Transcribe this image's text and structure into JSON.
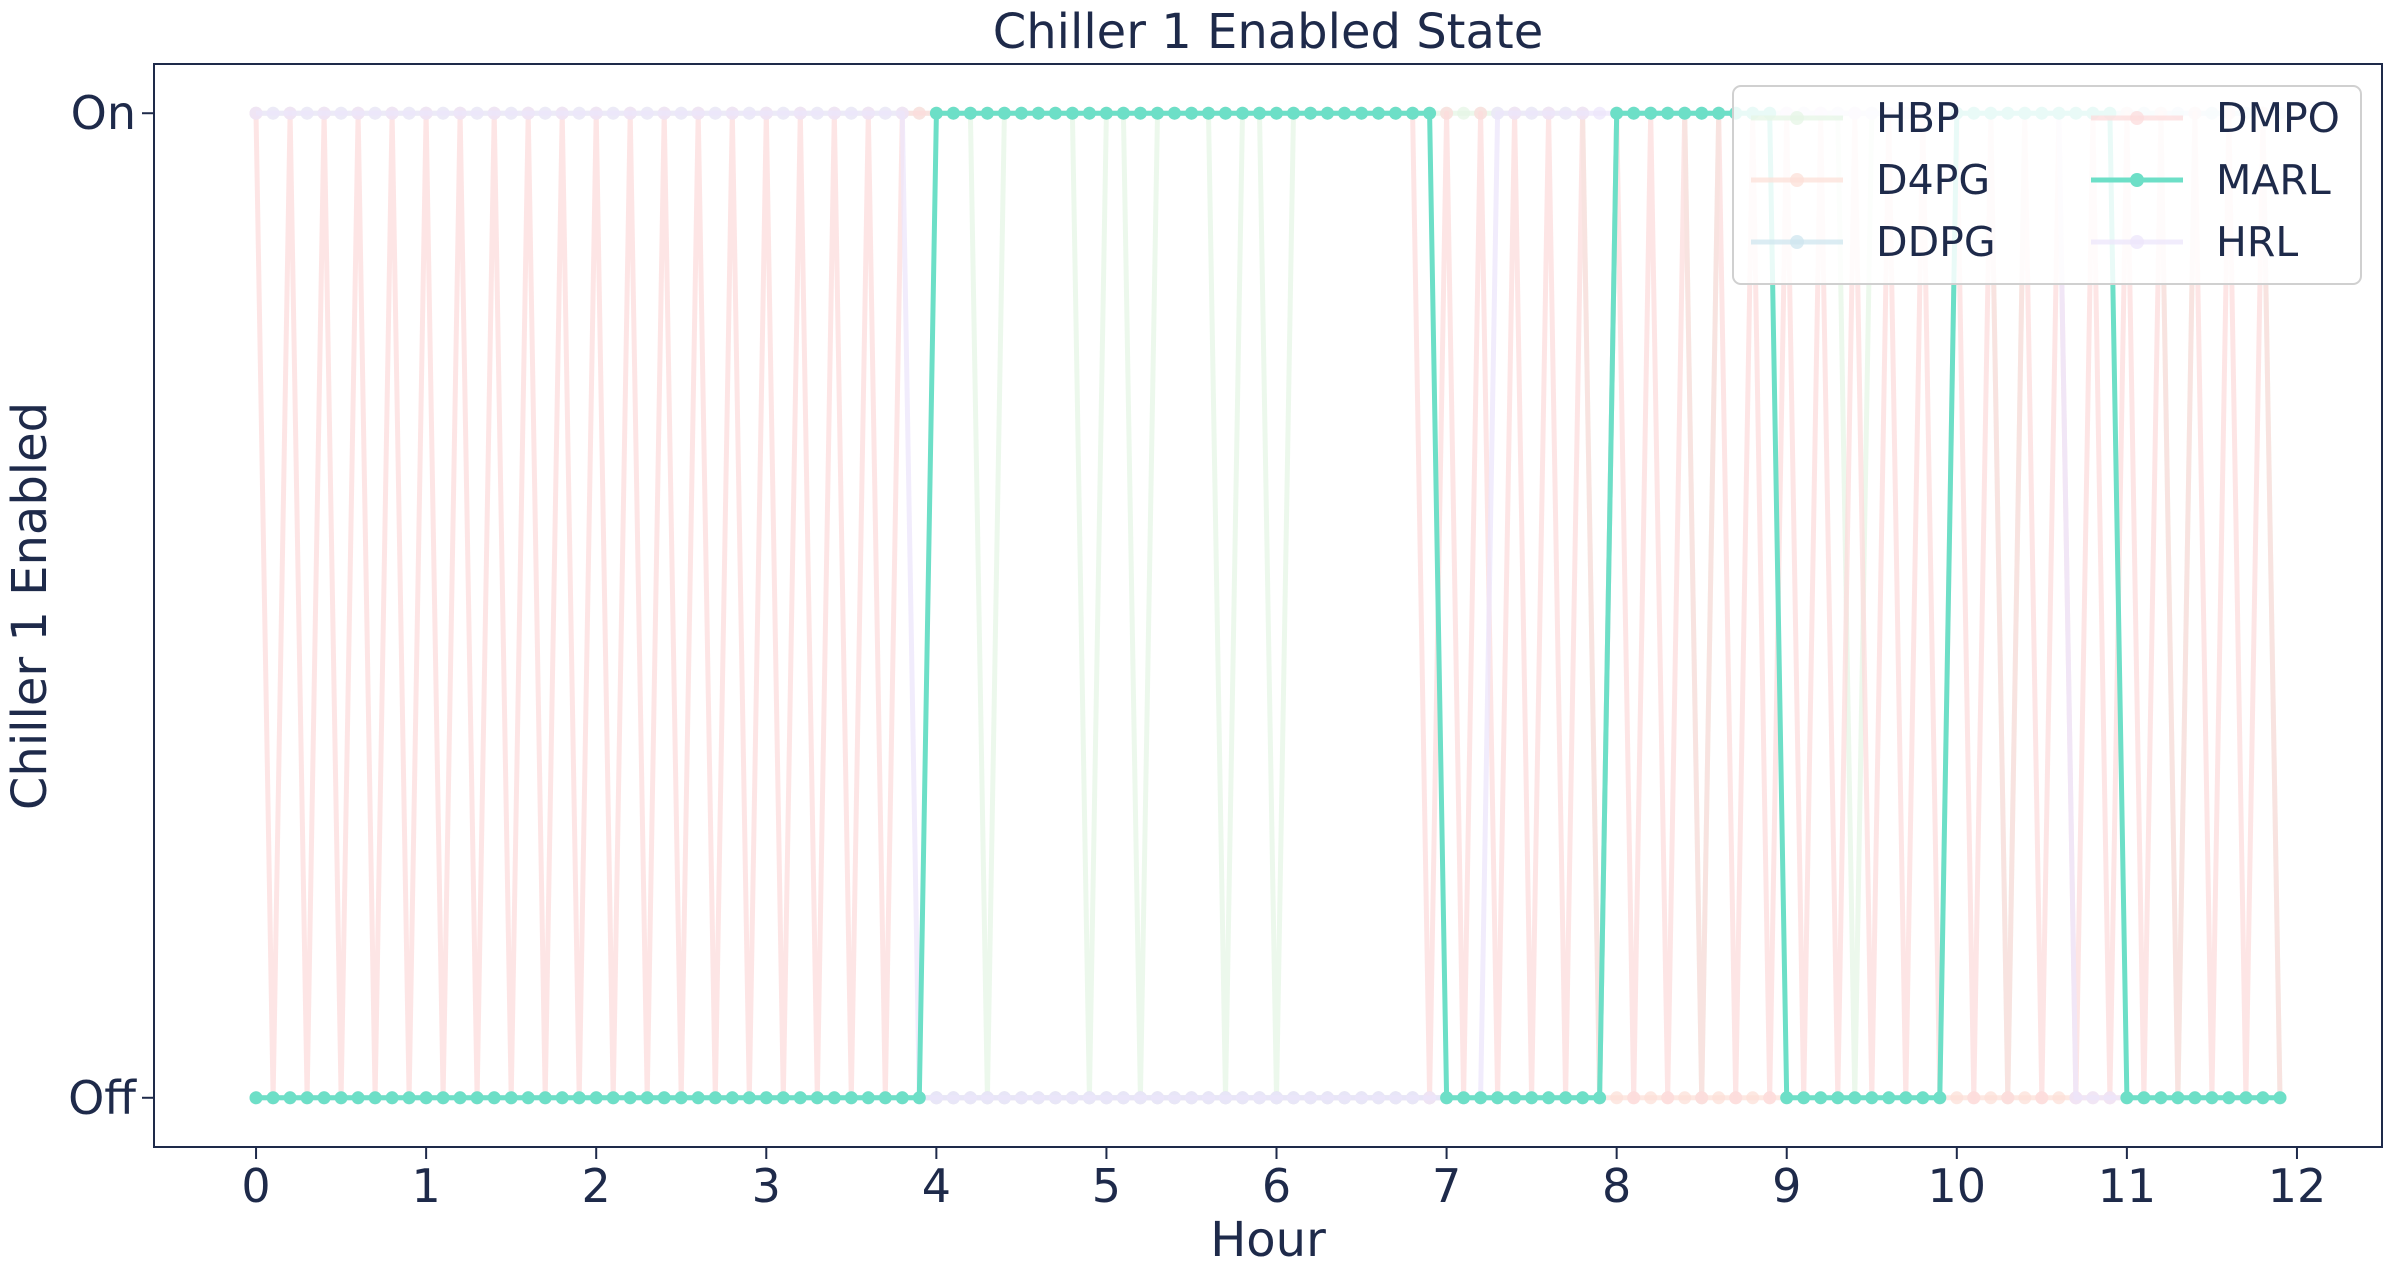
{
  "chart_data": {
    "type": "line",
    "title": "Chiller 1 Enabled State",
    "xlabel": "Hour",
    "ylabel": "Chiller 1 Enabled",
    "xlim": [
      -0.6,
      12.5
    ],
    "ylim": [
      -0.05,
      1.05
    ],
    "x_ticks": [
      "0",
      "1",
      "2",
      "3",
      "4",
      "5",
      "6",
      "7",
      "8",
      "9",
      "10",
      "11",
      "12"
    ],
    "y_ticks": [
      {
        "value": 0,
        "label": "Off"
      },
      {
        "value": 1,
        "label": "On"
      }
    ],
    "grid": false,
    "legend": {
      "placement": "upper right",
      "columns": 2
    },
    "sample_interval_hours": 0.1,
    "series": [
      {
        "name": "HBP",
        "color": "#e6f5e6",
        "segments": [
          {
            "from": 0.0,
            "to": 3.9,
            "value": 1
          },
          {
            "from": 4.0,
            "to": 12.0,
            "value": 1,
            "offs": [
              4.3,
              4.9,
              5.2,
              5.7,
              6.0,
              7.9,
              8.5,
              9.4,
              10.3,
              11.3,
              11.9
            ]
          }
        ]
      },
      {
        "name": "D4PG",
        "color": "#fce0d8",
        "segments": [
          {
            "from": 0.0,
            "to": 12.0,
            "value": 0
          }
        ]
      },
      {
        "name": "DDPG",
        "color": "#cfe6ef",
        "segments": [
          {
            "from": 0.0,
            "to": 12.0,
            "value": 0,
            "ons": [
              8.0,
              8.1,
              8.2,
              8.3,
              8.4,
              8.5,
              8.6,
              8.7,
              8.8,
              8.9,
              9.0,
              9.1,
              9.2,
              9.3,
              9.4,
              9.5,
              9.6,
              9.7,
              9.8,
              9.9,
              10.0,
              10.1,
              10.2,
              10.3,
              10.4,
              10.5,
              10.6,
              10.7,
              10.8,
              10.9,
              11.0,
              11.1,
              11.2,
              11.3,
              11.4,
              11.5,
              11.6,
              11.7,
              11.8,
              11.9
            ]
          }
        ]
      },
      {
        "name": "DMPO",
        "color": "#fcdcdc",
        "pattern": "alternating",
        "alternating_ranges": [
          [
            0.0,
            3.7
          ],
          [
            6.9,
            12.0
          ]
        ]
      },
      {
        "name": "MARL",
        "color": "#6ddfc7",
        "highlight": true,
        "steps": [
          {
            "from": 0.0,
            "to": 3.9,
            "value": 0
          },
          {
            "from": 4.0,
            "to": 6.9,
            "value": 1
          },
          {
            "from": 7.0,
            "to": 7.9,
            "value": 0
          },
          {
            "from": 8.0,
            "to": 8.9,
            "value": 1
          },
          {
            "from": 9.0,
            "to": 9.9,
            "value": 0
          },
          {
            "from": 10.0,
            "to": 10.9,
            "value": 1
          },
          {
            "from": 11.0,
            "to": 11.9,
            "value": 0
          }
        ]
      },
      {
        "name": "HRL",
        "color": "#ece6fb",
        "steps": [
          {
            "from": 0.0,
            "to": 3.8,
            "value": 1
          },
          {
            "from": 3.9,
            "to": 6.9,
            "value": 0
          },
          {
            "from": 7.0,
            "to": 7.2,
            "value": 0
          },
          {
            "from": 7.3,
            "to": 7.3,
            "value": 1
          },
          {
            "from": 7.4,
            "to": 10.6,
            "value": 1
          },
          {
            "from": 10.7,
            "to": 11.9,
            "value": 0
          }
        ]
      }
    ]
  },
  "colors": {
    "axis": "#1e2a4a",
    "text": "#1e2a4a",
    "legend_border": "#d0d0d0"
  }
}
